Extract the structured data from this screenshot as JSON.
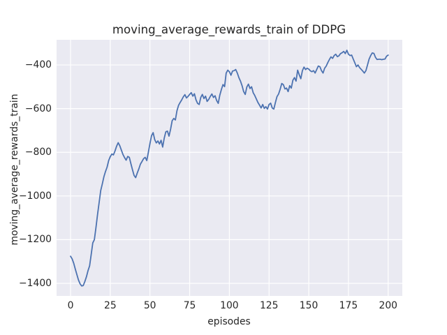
{
  "figure": {
    "title": "moving_average_rewards_train of DDPG"
  },
  "chart_data": {
    "type": "line",
    "title": "moving_average_rewards_train of DDPG",
    "xlabel": "episodes",
    "ylabel": "moving_average_rewards_train",
    "xlim": [
      -8.8,
      208.9
    ],
    "ylim": [
      -1457.6,
      -284.8
    ],
    "xticks": [
      0,
      25,
      50,
      75,
      100,
      125,
      150,
      175,
      200
    ],
    "yticks": [
      -400,
      -600,
      -800,
      -1000,
      -1200,
      -1400
    ],
    "grid": true,
    "legend_position": "none",
    "colors": {
      "line": "#4c72b0",
      "plot_background": "#eaeaf2",
      "grid": "#ffffff",
      "text": "#262626",
      "figure_background": "#ffffff"
    },
    "series": [
      {
        "name": "moving_average_rewards_train",
        "x_start": 0,
        "x_step": 1,
        "values": [
          -1276,
          -1288,
          -1308,
          -1335,
          -1360,
          -1385,
          -1402,
          -1412,
          -1410,
          -1392,
          -1370,
          -1342,
          -1320,
          -1268,
          -1215,
          -1200,
          -1145,
          -1085,
          -1030,
          -975,
          -945,
          -912,
          -888,
          -868,
          -838,
          -820,
          -808,
          -812,
          -794,
          -772,
          -756,
          -770,
          -790,
          -810,
          -824,
          -836,
          -819,
          -823,
          -852,
          -880,
          -906,
          -916,
          -895,
          -876,
          -854,
          -842,
          -829,
          -823,
          -838,
          -800,
          -760,
          -724,
          -710,
          -742,
          -757,
          -748,
          -762,
          -745,
          -776,
          -735,
          -706,
          -703,
          -726,
          -694,
          -655,
          -645,
          -652,
          -610,
          -585,
          -572,
          -560,
          -546,
          -536,
          -551,
          -544,
          -535,
          -527,
          -543,
          -532,
          -560,
          -576,
          -581,
          -549,
          -535,
          -554,
          -543,
          -567,
          -558,
          -544,
          -533,
          -549,
          -541,
          -563,
          -576,
          -538,
          -512,
          -490,
          -499,
          -437,
          -424,
          -431,
          -447,
          -428,
          -426,
          -421,
          -437,
          -458,
          -474,
          -495,
          -522,
          -535,
          -501,
          -488,
          -508,
          -500,
          -527,
          -540,
          -556,
          -572,
          -584,
          -597,
          -581,
          -599,
          -591,
          -602,
          -581,
          -575,
          -597,
          -602,
          -572,
          -545,
          -533,
          -511,
          -485,
          -490,
          -510,
          -506,
          -522,
          -495,
          -506,
          -470,
          -458,
          -474,
          -424,
          -445,
          -463,
          -426,
          -410,
          -421,
          -415,
          -419,
          -427,
          -431,
          -426,
          -437,
          -421,
          -405,
          -408,
          -426,
          -437,
          -415,
          -405,
          -389,
          -375,
          -363,
          -370,
          -357,
          -351,
          -362,
          -358,
          -348,
          -344,
          -338,
          -348,
          -333,
          -351,
          -357,
          -355,
          -373,
          -390,
          -408,
          -400,
          -412,
          -420,
          -428,
          -437,
          -426,
          -400,
          -373,
          -357,
          -345,
          -347,
          -365,
          -375,
          -374,
          -374,
          -376,
          -374,
          -373,
          -360,
          -355
        ]
      }
    ]
  }
}
